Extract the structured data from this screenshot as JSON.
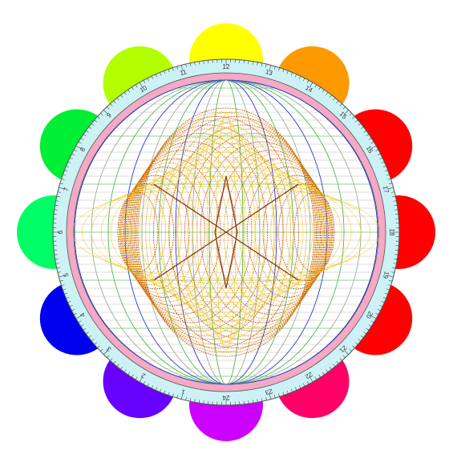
{
  "dial": {
    "hour_labels": [
      "1",
      "2",
      "3",
      "4",
      "5",
      "6",
      "7",
      "8",
      "9",
      "10",
      "11",
      "12",
      "13",
      "14",
      "15",
      "16",
      "17",
      "18",
      "19",
      "20",
      "21",
      "22",
      "23",
      "24"
    ]
  }
}
